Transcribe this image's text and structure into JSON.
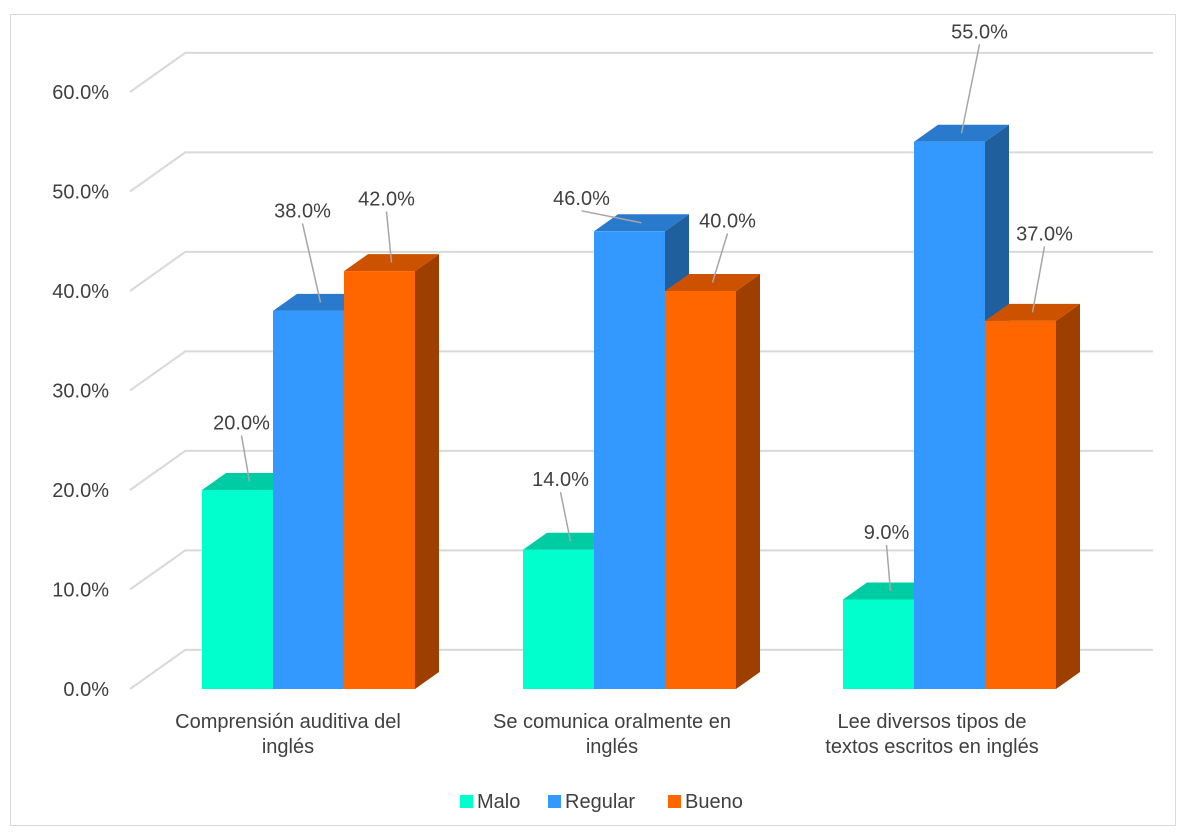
{
  "chart_data": {
    "type": "bar",
    "categories": [
      [
        "Comprensión auditiva del",
        "inglés"
      ],
      [
        "Se comunica oralmente en",
        "inglés"
      ],
      [
        "Lee diversos tipos de",
        "textos escritos en inglés"
      ]
    ],
    "series": [
      {
        "name": "Malo",
        "color": "#00ffcc",
        "labels": [
          "20.0%",
          "14.0%",
          "9.0%"
        ],
        "values": [
          20,
          14,
          9
        ]
      },
      {
        "name": "Regular",
        "color": "#3399ff",
        "labels": [
          "38.0%",
          "46.0%",
          "55.0%"
        ],
        "values": [
          38,
          46,
          55
        ]
      },
      {
        "name": "Bueno",
        "color": "#ff6600",
        "labels": [
          "42.0%",
          "40.0%",
          "37.0%"
        ],
        "values": [
          42,
          40,
          37
        ]
      }
    ],
    "yticks": [
      "0.0%",
      "10.0%",
      "20.0%",
      "30.0%",
      "40.0%",
      "50.0%",
      "60.0%"
    ],
    "ylim": [
      0,
      60
    ],
    "grid": true,
    "legend_position": "bottom",
    "three_d": true
  }
}
